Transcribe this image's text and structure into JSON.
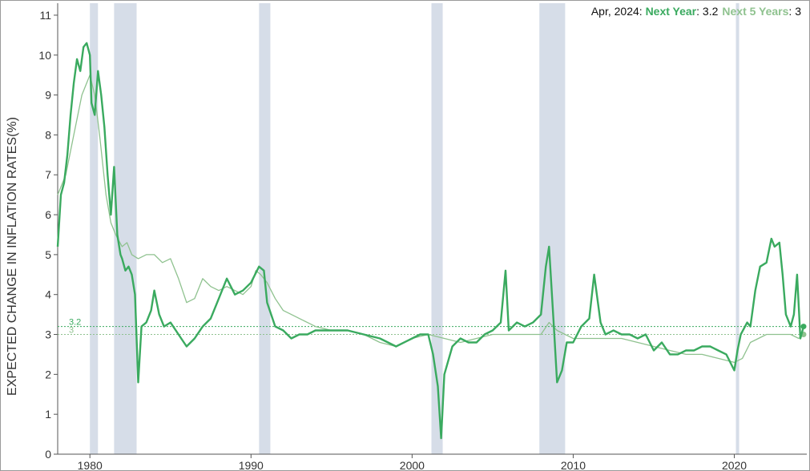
{
  "chart_data": {
    "type": "line",
    "ylabel": "EXPECTED CHANGE IN INFLATION RATES(%)",
    "xlabel": "",
    "xlim": [
      1978.0,
      2024.5
    ],
    "ylim": [
      0,
      11.3
    ],
    "x_ticks": [
      1980,
      1990,
      2000,
      2010,
      2020
    ],
    "y_ticks": [
      0,
      1,
      2,
      3,
      4,
      5,
      6,
      7,
      8,
      9,
      10,
      11
    ],
    "grid": false,
    "legend_placement": "top-right",
    "recessions": [
      [
        1980.0,
        1980.5
      ],
      [
        1981.5,
        1982.9
      ],
      [
        1990.5,
        1991.2
      ],
      [
        2001.2,
        2001.9
      ],
      [
        2007.9,
        2009.5
      ],
      [
        2020.1,
        2020.3
      ]
    ],
    "legend": {
      "date": "Apr, 2024",
      "sep1": ": ",
      "series1_name": "Next Year",
      "sep2": ": ",
      "series1_value": "3.2",
      "series2_name": "Next 5 Years",
      "sep3": ": ",
      "series2_value": "3"
    },
    "reference_lines": [
      {
        "label": "3.2",
        "value": 3.2
      },
      {
        "label": "3",
        "value": 3.0
      }
    ],
    "series": [
      {
        "name": "Next Year",
        "color": "#3aaa5f",
        "x": [
          1978.0,
          1978.2,
          1978.4,
          1978.6,
          1978.8,
          1979.0,
          1979.2,
          1979.4,
          1979.6,
          1979.8,
          1980.0,
          1980.1,
          1980.3,
          1980.5,
          1980.7,
          1980.9,
          1981.1,
          1981.3,
          1981.5,
          1981.7,
          1981.9,
          1982.0,
          1982.2,
          1982.4,
          1982.6,
          1982.8,
          1983.0,
          1983.2,
          1983.5,
          1983.8,
          1984.0,
          1984.3,
          1984.6,
          1985.0,
          1985.5,
          1986.0,
          1986.5,
          1987.0,
          1987.5,
          1988.0,
          1988.5,
          1989.0,
          1989.5,
          1990.0,
          1990.5,
          1990.8,
          1991.0,
          1991.5,
          1992.0,
          1992.5,
          1993.0,
          1993.5,
          1994.0,
          1995.0,
          1996.0,
          1997.0,
          1998.0,
          1999.0,
          2000.0,
          2000.5,
          2001.0,
          2001.3,
          2001.6,
          2001.8,
          2002.0,
          2002.5,
          2003.0,
          2003.5,
          2004.0,
          2004.5,
          2005.0,
          2005.5,
          2005.8,
          2006.0,
          2006.5,
          2007.0,
          2007.5,
          2008.0,
          2008.3,
          2008.5,
          2008.8,
          2009.0,
          2009.3,
          2009.6,
          2010.0,
          2010.5,
          2011.0,
          2011.3,
          2011.7,
          2012.0,
          2012.5,
          2013.0,
          2013.5,
          2014.0,
          2014.5,
          2015.0,
          2015.5,
          2016.0,
          2016.5,
          2017.0,
          2017.5,
          2018.0,
          2018.5,
          2019.0,
          2019.5,
          2020.0,
          2020.2,
          2020.4,
          2020.8,
          2021.0,
          2021.3,
          2021.6,
          2022.0,
          2022.3,
          2022.5,
          2022.8,
          2023.0,
          2023.2,
          2023.5,
          2023.7,
          2023.9,
          2024.1,
          2024.3
        ],
        "y": [
          5.2,
          6.5,
          6.8,
          7.5,
          8.5,
          9.3,
          9.9,
          9.6,
          10.2,
          10.3,
          10.0,
          8.8,
          8.5,
          9.6,
          9.0,
          8.2,
          7.0,
          6.0,
          7.2,
          5.5,
          5.0,
          4.9,
          4.6,
          4.7,
          4.5,
          4.0,
          1.8,
          3.2,
          3.3,
          3.6,
          4.1,
          3.5,
          3.2,
          3.3,
          3.0,
          2.7,
          2.9,
          3.2,
          3.4,
          3.9,
          4.4,
          4.0,
          4.1,
          4.3,
          4.7,
          4.6,
          3.8,
          3.2,
          3.1,
          2.9,
          3.0,
          3.0,
          3.1,
          3.1,
          3.1,
          3.0,
          2.9,
          2.7,
          2.9,
          3.0,
          3.0,
          2.5,
          1.7,
          0.4,
          2.0,
          2.7,
          2.9,
          2.8,
          2.8,
          3.0,
          3.1,
          3.3,
          4.6,
          3.1,
          3.3,
          3.2,
          3.3,
          3.5,
          4.7,
          5.2,
          3.2,
          1.8,
          2.1,
          2.8,
          2.8,
          3.2,
          3.4,
          4.5,
          3.3,
          3.0,
          3.1,
          3.0,
          3.0,
          2.9,
          3.0,
          2.6,
          2.8,
          2.5,
          2.5,
          2.6,
          2.6,
          2.7,
          2.7,
          2.6,
          2.5,
          2.1,
          2.6,
          3.0,
          3.3,
          3.2,
          4.1,
          4.7,
          4.8,
          5.4,
          5.2,
          5.3,
          4.5,
          3.5,
          3.2,
          3.5,
          4.5,
          2.9,
          3.2
        ]
      },
      {
        "name": "Next 5 Years",
        "color": "#8fc28f",
        "x": [
          1978.0,
          1978.5,
          1979.0,
          1979.5,
          1979.8,
          1980.0,
          1980.3,
          1980.6,
          1981.0,
          1981.3,
          1981.6,
          1982.0,
          1982.3,
          1982.6,
          1983.0,
          1983.5,
          1984.0,
          1984.5,
          1985.0,
          1985.5,
          1986.0,
          1986.5,
          1987.0,
          1987.5,
          1988.0,
          1988.5,
          1989.0,
          1989.5,
          1990.0,
          1990.3,
          1990.6,
          1991.0,
          1991.5,
          1992.0,
          1992.5,
          1993.0,
          1993.5,
          1994.0,
          1995.0,
          1996.0,
          1997.0,
          1998.0,
          1999.0,
          2000.0,
          2001.0,
          2002.0,
          2003.0,
          2004.0,
          2005.0,
          2006.0,
          2007.0,
          2008.0,
          2008.5,
          2009.0,
          2010.0,
          2011.0,
          2012.0,
          2013.0,
          2014.0,
          2015.0,
          2016.0,
          2017.0,
          2018.0,
          2019.0,
          2020.0,
          2020.5,
          2021.0,
          2021.5,
          2022.0,
          2022.5,
          2023.0,
          2023.5,
          2024.0,
          2024.3
        ],
        "y": [
          6.5,
          7.0,
          8.0,
          9.0,
          9.3,
          9.5,
          9.0,
          8.0,
          6.5,
          5.8,
          5.5,
          5.2,
          5.3,
          5.0,
          4.9,
          5.0,
          5.0,
          4.8,
          4.9,
          4.4,
          3.8,
          3.9,
          4.4,
          4.2,
          4.1,
          4.2,
          4.1,
          4.0,
          4.2,
          4.6,
          4.5,
          4.3,
          3.9,
          3.6,
          3.5,
          3.4,
          3.3,
          3.2,
          3.1,
          3.1,
          3.0,
          2.8,
          2.7,
          2.9,
          3.0,
          2.9,
          2.8,
          2.9,
          3.0,
          3.0,
          3.0,
          3.0,
          3.3,
          3.1,
          2.9,
          2.9,
          2.9,
          2.9,
          2.8,
          2.7,
          2.6,
          2.5,
          2.5,
          2.4,
          2.3,
          2.4,
          2.8,
          2.9,
          3.0,
          3.0,
          3.0,
          3.0,
          2.9,
          3.0
        ]
      }
    ]
  }
}
